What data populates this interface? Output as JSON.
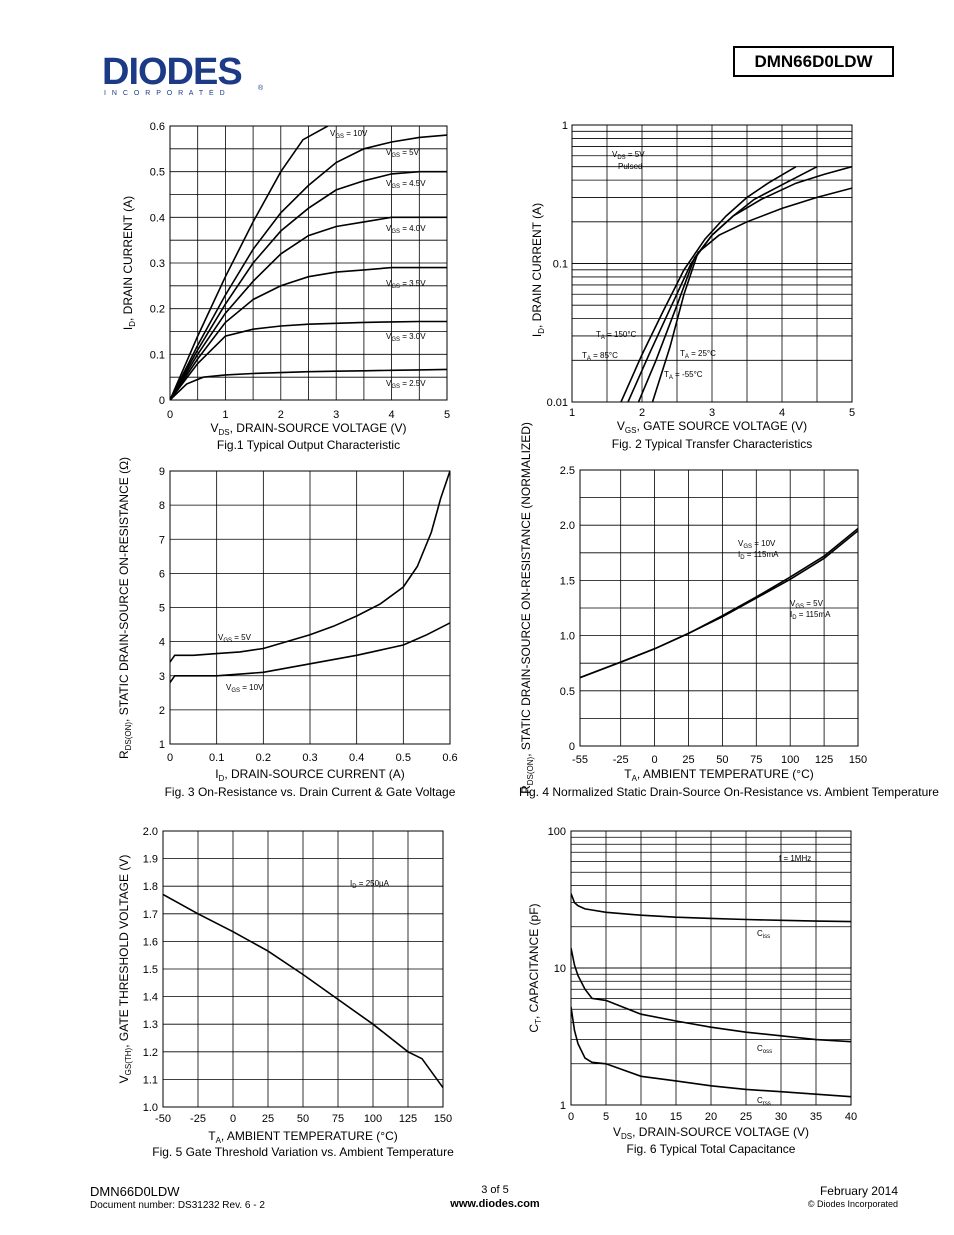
{
  "header": {
    "logo_text": "DIODES",
    "logo_sub": "I N C O R P O R A T E D",
    "part_number": "DMN66D0LDW"
  },
  "footer": {
    "part_number": "DMN66D0LDW",
    "document": "Document number: DS31232  Rev. 6 - 2",
    "page": "3 of 5",
    "website": "www.diodes.com",
    "date": "February 2014",
    "copyright": "© Diodes Incorporated"
  },
  "chart_data": [
    {
      "type": "line",
      "caption": "Fig.1 Typical Output Characteristic",
      "xlabel": "VDS, DRAIN-SOURCE VOLTAGE (V)",
      "ylabel": "ID, DRAIN CURRENT (A)",
      "xlim": [
        0,
        5
      ],
      "ylim": [
        0,
        0.6
      ],
      "xticks": [
        "0",
        "1",
        "2",
        "3",
        "4",
        "5"
      ],
      "yticks": [
        "0",
        "0.1",
        "0.2",
        "0.3",
        "0.4",
        "0.5",
        "0.6"
      ],
      "grid": true,
      "series": [
        {
          "name": "VGS = 10V",
          "x": [
            0,
            0.5,
            1,
            1.5,
            2,
            2.4,
            2.85
          ],
          "y": [
            0,
            0.14,
            0.27,
            0.39,
            0.5,
            0.57,
            0.6
          ]
        },
        {
          "name": "VGS = 5V",
          "x": [
            0,
            0.5,
            1,
            1.5,
            2,
            2.5,
            3,
            3.5,
            4,
            4.5,
            5
          ],
          "y": [
            0,
            0.12,
            0.23,
            0.33,
            0.41,
            0.47,
            0.52,
            0.55,
            0.565,
            0.575,
            0.58
          ]
        },
        {
          "name": "VGS = 4.5V",
          "x": [
            0,
            0.5,
            1,
            1.5,
            2,
            2.5,
            3,
            3.5,
            4,
            4.5,
            5
          ],
          "y": [
            0,
            0.11,
            0.21,
            0.3,
            0.37,
            0.42,
            0.46,
            0.48,
            0.495,
            0.5,
            0.5
          ]
        },
        {
          "name": "VGS = 4.0V",
          "x": [
            0,
            0.5,
            1,
            1.5,
            2,
            2.5,
            3,
            3.5,
            4,
            4.5,
            5
          ],
          "y": [
            0,
            0.1,
            0.19,
            0.26,
            0.32,
            0.36,
            0.38,
            0.39,
            0.4,
            0.4,
            0.4
          ]
        },
        {
          "name": "VGS = 3.5V",
          "x": [
            0,
            0.5,
            1,
            1.5,
            2,
            2.5,
            3,
            3.5,
            4,
            4.5,
            5
          ],
          "y": [
            0,
            0.09,
            0.17,
            0.22,
            0.25,
            0.27,
            0.28,
            0.285,
            0.29,
            0.29,
            0.29
          ]
        },
        {
          "name": "VGS = 3.0V",
          "x": [
            0,
            0.5,
            1,
            1.5,
            2,
            2.5,
            3,
            3.5,
            4,
            4.5,
            5
          ],
          "y": [
            0,
            0.08,
            0.14,
            0.155,
            0.162,
            0.166,
            0.168,
            0.17,
            0.171,
            0.172,
            0.172
          ]
        },
        {
          "name": "VGS = 2.5V",
          "x": [
            0,
            0.3,
            0.6,
            1,
            1.5,
            2,
            2.5,
            3,
            3.5,
            4,
            4.5,
            5
          ],
          "y": [
            0,
            0.035,
            0.05,
            0.055,
            0.058,
            0.06,
            0.062,
            0.063,
            0.064,
            0.065,
            0.066,
            0.067
          ]
        }
      ]
    },
    {
      "type": "line",
      "caption": "Fig. 2 Typical Transfer Characteristics",
      "xlabel": "VGS, GATE SOURCE VOLTAGE (V)",
      "ylabel": "ID, DRAIN CURRENT (A)",
      "xlim": [
        1,
        5
      ],
      "ylim": [
        0.01,
        1
      ],
      "yscale": "log",
      "xticks": [
        "1",
        "2",
        "3",
        "4",
        "5"
      ],
      "yticks": [
        "0.01",
        "0.1",
        "1"
      ],
      "grid": true,
      "legend": "VDS = 5V Pulsed",
      "series": [
        {
          "name": "TA = 150°C",
          "x": [
            1.7,
            2,
            2.3,
            2.6,
            2.9,
            3.2,
            3.5,
            3.8,
            4.2
          ],
          "y": [
            0.01,
            0.022,
            0.045,
            0.09,
            0.15,
            0.22,
            0.3,
            0.38,
            0.5
          ]
        },
        {
          "name": "TA = 85°C",
          "x": [
            1.8,
            2.1,
            2.4,
            2.7,
            3,
            3.3,
            3.6,
            4,
            4.5
          ],
          "y": [
            0.01,
            0.022,
            0.047,
            0.1,
            0.16,
            0.22,
            0.29,
            0.37,
            0.5
          ]
        },
        {
          "name": "TA = 25°C",
          "x": [
            1.95,
            2.2,
            2.5,
            2.75,
            3,
            3.3,
            3.7,
            4.2,
            4.6,
            5
          ],
          "y": [
            0.01,
            0.02,
            0.05,
            0.11,
            0.16,
            0.22,
            0.29,
            0.38,
            0.44,
            0.5
          ]
        },
        {
          "name": "TA = -55°C",
          "x": [
            2.15,
            2.4,
            2.6,
            2.8,
            3.1,
            3.5,
            4,
            4.5,
            5
          ],
          "y": [
            0.01,
            0.025,
            0.06,
            0.12,
            0.16,
            0.2,
            0.25,
            0.3,
            0.35
          ]
        }
      ]
    },
    {
      "type": "line",
      "caption": "Fig. 3  On-Resistance  vs. Drain Current & Gate Voltage",
      "xlabel": "ID, DRAIN-SOURCE CURRENT (A)",
      "ylabel": "RDS(ON), STATIC DRAIN-SOURCE ON-RESISTANCE (Ω)",
      "xlim": [
        0,
        0.6
      ],
      "ylim": [
        1,
        9
      ],
      "xticks": [
        "0",
        "0.1",
        "0.2",
        "0.3",
        "0.4",
        "0.5",
        "0.6"
      ],
      "yticks": [
        "1",
        "2",
        "3",
        "4",
        "5",
        "6",
        "7",
        "8",
        "9"
      ],
      "grid": true,
      "series": [
        {
          "name": "VGS = 5V",
          "x": [
            0,
            0.01,
            0.05,
            0.1,
            0.15,
            0.2,
            0.25,
            0.3,
            0.35,
            0.4,
            0.45,
            0.5,
            0.53,
            0.56,
            0.58,
            0.6
          ],
          "y": [
            3.4,
            3.6,
            3.6,
            3.65,
            3.7,
            3.8,
            4.0,
            4.2,
            4.45,
            4.75,
            5.1,
            5.6,
            6.2,
            7.2,
            8.2,
            9.0
          ]
        },
        {
          "name": "VGS = 10V",
          "x": [
            0,
            0.01,
            0.1,
            0.2,
            0.3,
            0.4,
            0.45,
            0.5,
            0.55,
            0.6
          ],
          "y": [
            2.8,
            3.0,
            3.0,
            3.1,
            3.35,
            3.6,
            3.75,
            3.9,
            4.2,
            4.55
          ]
        }
      ]
    },
    {
      "type": "line",
      "caption": "Fig. 4 Normalized Static Drain-Source On-Resistance vs. Ambient Temperature",
      "xlabel": "TA, AMBIENT TEMPERATURE (°C)",
      "ylabel": "RDS(ON), STATIC DRAIN-SOURCE ON-RESISTANCE (NORMALIZED)",
      "xlim": [
        -55,
        150
      ],
      "ylim": [
        0,
        2.5
      ],
      "xticks": [
        "-55",
        "-25",
        "0",
        "25",
        "50",
        "75",
        "100",
        "125",
        "150"
      ],
      "yticks": [
        "0",
        "0.5",
        "1.0",
        "1.5",
        "2.0",
        "2.5"
      ],
      "grid": true,
      "series": [
        {
          "name": "VGS = 10V ID = 115mA",
          "x": [
            -55,
            -25,
            0,
            25,
            50,
            75,
            100,
            125,
            150
          ],
          "y": [
            0.62,
            0.76,
            0.88,
            1.02,
            1.18,
            1.35,
            1.53,
            1.72,
            1.97
          ]
        },
        {
          "name": "VGS = 5V ID = 115mA",
          "x": [
            -55,
            -25,
            0,
            25,
            50,
            75,
            100,
            125,
            150
          ],
          "y": [
            0.62,
            0.76,
            0.88,
            1.02,
            1.17,
            1.34,
            1.51,
            1.7,
            1.95
          ]
        }
      ]
    },
    {
      "type": "line",
      "caption": "Fig. 5 Gate Threshold Variation vs. Ambient Temperature",
      "xlabel": "TA, AMBIENT TEMPERATURE (°C)",
      "ylabel": "VGS(TH), GATE THRESHOLD VOLTAGE (V)",
      "xlim": [
        -50,
        150
      ],
      "ylim": [
        1.0,
        2.0
      ],
      "xticks": [
        "-50",
        "-25",
        "0",
        "25",
        "50",
        "75",
        "100",
        "125",
        "150"
      ],
      "yticks": [
        "1.0",
        "1.1",
        "1.2",
        "1.3",
        "1.4",
        "1.5",
        "1.6",
        "1.7",
        "1.8",
        "1.9",
        "2.0"
      ],
      "grid": true,
      "annotation": "ID = 250µA",
      "series": [
        {
          "name": "ID = 250µA",
          "x": [
            -50,
            -25,
            0,
            25,
            50,
            75,
            100,
            125,
            135,
            150
          ],
          "y": [
            1.77,
            1.7,
            1.635,
            1.565,
            1.48,
            1.39,
            1.3,
            1.2,
            1.175,
            1.07
          ]
        }
      ]
    },
    {
      "type": "line",
      "caption": "Fig. 6  Typical Total Capacitance",
      "xlabel": "VDS, DRAIN-SOURCE VOLTAGE (V)",
      "ylabel": "CT, CAPACITANCE (pF)",
      "xlim": [
        0,
        40
      ],
      "ylim": [
        1,
        100
      ],
      "yscale": "log",
      "xticks": [
        "0",
        "5",
        "10",
        "15",
        "20",
        "25",
        "30",
        "35",
        "40"
      ],
      "yticks": [
        "1",
        "10",
        "100"
      ],
      "grid": true,
      "legend": "f = 1MHz",
      "series": [
        {
          "name": "Ciss",
          "x": [
            0,
            0.5,
            1,
            2,
            3,
            5,
            10,
            15,
            20,
            25,
            30,
            35,
            40
          ],
          "y": [
            35,
            30,
            28.5,
            27,
            26.5,
            25.5,
            24.3,
            23.5,
            23,
            22.6,
            22.3,
            22,
            21.8
          ]
        },
        {
          "name": "Coss",
          "x": [
            0,
            0.5,
            1,
            2,
            3,
            5,
            10,
            15,
            20,
            25,
            30,
            35,
            40
          ],
          "y": [
            14,
            10.5,
            8.8,
            7,
            6,
            5.8,
            4.6,
            4.1,
            3.7,
            3.4,
            3.2,
            3.0,
            2.9
          ]
        },
        {
          "name": "Crss",
          "x": [
            0,
            0.5,
            1,
            2,
            3,
            5,
            10,
            15,
            20,
            25,
            30,
            35,
            40
          ],
          "y": [
            5.2,
            3.5,
            2.8,
            2.2,
            2.05,
            2.0,
            1.62,
            1.5,
            1.38,
            1.3,
            1.25,
            1.2,
            1.15
          ]
        }
      ]
    }
  ]
}
